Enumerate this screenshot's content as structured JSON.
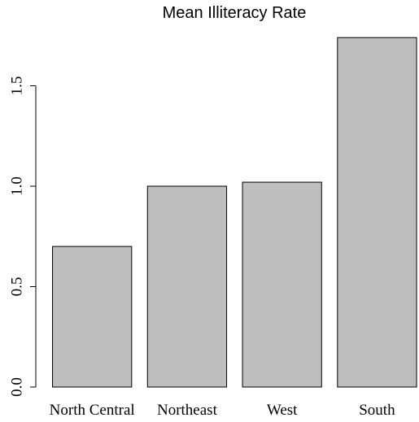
{
  "chart_data": {
    "type": "bar",
    "title": "Mean Illiteracy Rate",
    "xlabel": "",
    "ylabel": "",
    "categories": [
      "North Central",
      "Northeast",
      "West",
      "South"
    ],
    "values": [
      0.7,
      1.0,
      1.02,
      1.74
    ],
    "ylim": [
      0,
      1.8
    ],
    "yticks": [
      0.0,
      0.5,
      1.0,
      1.5
    ],
    "ytick_labels": [
      "0.0",
      "0.5",
      "1.0",
      "1.5"
    ],
    "grid": false,
    "legend": "none",
    "bar_color": "#bebebe",
    "border_color": "#000000"
  }
}
